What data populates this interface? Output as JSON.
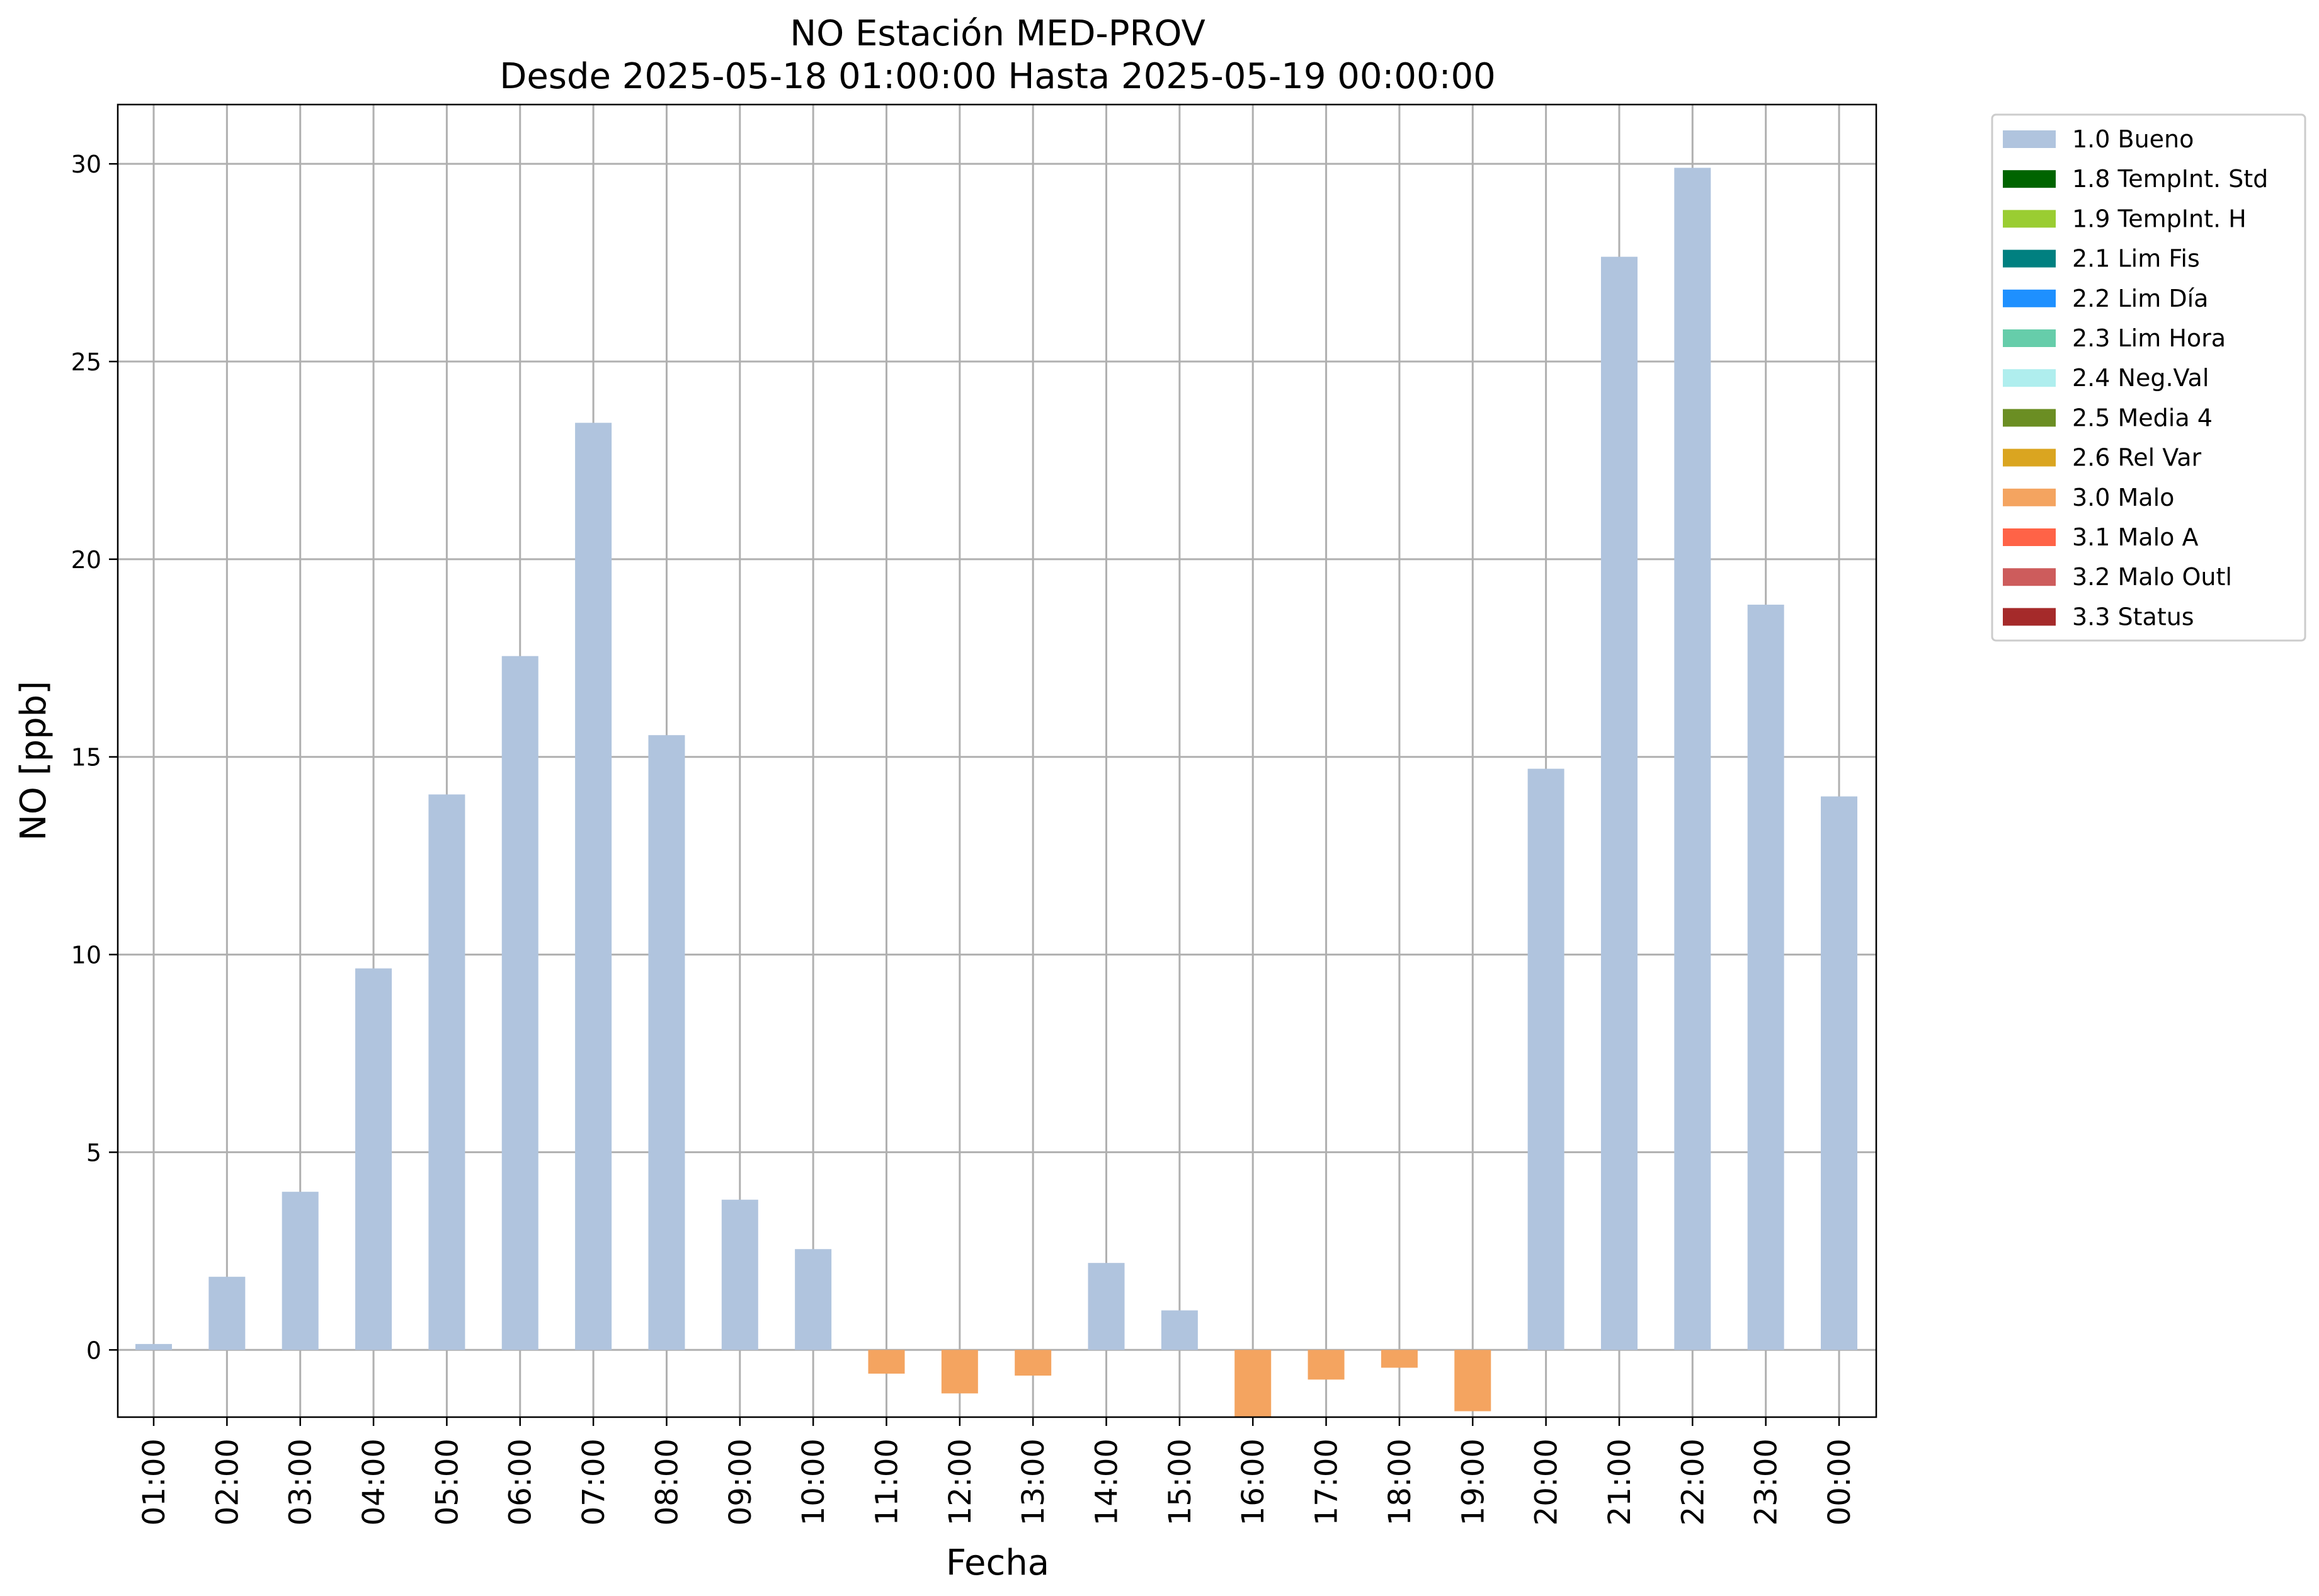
{
  "chart_data": {
    "type": "bar",
    "title": "NO Estación MED-PROV",
    "subtitle": "Desde 2025-05-18 01:00:00 Hasta 2025-05-19 00:00:00",
    "xlabel": "Fecha",
    "ylabel": "NO [ppb]",
    "ylim": [
      -1.7,
      31.5
    ],
    "yticks": [
      0,
      5,
      10,
      15,
      20,
      25,
      30
    ],
    "grid": true,
    "legend_position": "outside-top-right",
    "categories": [
      "01:00",
      "02:00",
      "03:00",
      "04:00",
      "05:00",
      "06:00",
      "07:00",
      "08:00",
      "09:00",
      "10:00",
      "11:00",
      "12:00",
      "13:00",
      "14:00",
      "15:00",
      "16:00",
      "17:00",
      "18:00",
      "19:00",
      "20:00",
      "21:00",
      "22:00",
      "23:00",
      "00:00"
    ],
    "values": [
      0.15,
      1.85,
      4.0,
      9.65,
      14.05,
      17.55,
      23.45,
      15.55,
      3.8,
      2.55,
      -0.6,
      -1.1,
      -0.65,
      2.2,
      1.0,
      -1.7,
      -0.75,
      -0.45,
      -1.55,
      14.7,
      27.65,
      29.9,
      18.85,
      14.0
    ],
    "flags": [
      "1.0 Bueno",
      "1.0 Bueno",
      "1.0 Bueno",
      "1.0 Bueno",
      "1.0 Bueno",
      "1.0 Bueno",
      "1.0 Bueno",
      "1.0 Bueno",
      "1.0 Bueno",
      "1.0 Bueno",
      "3.0 Malo",
      "3.0 Malo",
      "3.0 Malo",
      "1.0 Bueno",
      "1.0 Bueno",
      "3.0 Malo",
      "3.0 Malo",
      "3.0 Malo",
      "3.0 Malo",
      "1.0 Bueno",
      "1.0 Bueno",
      "1.0 Bueno",
      "1.0 Bueno",
      "1.0 Bueno"
    ],
    "legend": [
      {
        "label": "1.0 Bueno",
        "color": "#b0c4de"
      },
      {
        "label": "1.8 TempInt. Std",
        "color": "#006400"
      },
      {
        "label": "1.9 TempInt. H",
        "color": "#9acd32"
      },
      {
        "label": "2.1 Lim Fis",
        "color": "#008080"
      },
      {
        "label": "2.2 Lim Día",
        "color": "#1e90ff"
      },
      {
        "label": "2.3 Lim Hora",
        "color": "#66cdaa"
      },
      {
        "label": "2.4 Neg.Val",
        "color": "#afeeee"
      },
      {
        "label": "2.5 Media 4",
        "color": "#6b8e23"
      },
      {
        "label": "2.6 Rel Var",
        "color": "#daa520"
      },
      {
        "label": "3.0 Malo",
        "color": "#f4a460"
      },
      {
        "label": "3.1 Malo A",
        "color": "#ff6347"
      },
      {
        "label": "3.2 Malo Outl",
        "color": "#cd5c5c"
      },
      {
        "label": "3.3 Status",
        "color": "#a52a2a"
      }
    ]
  }
}
